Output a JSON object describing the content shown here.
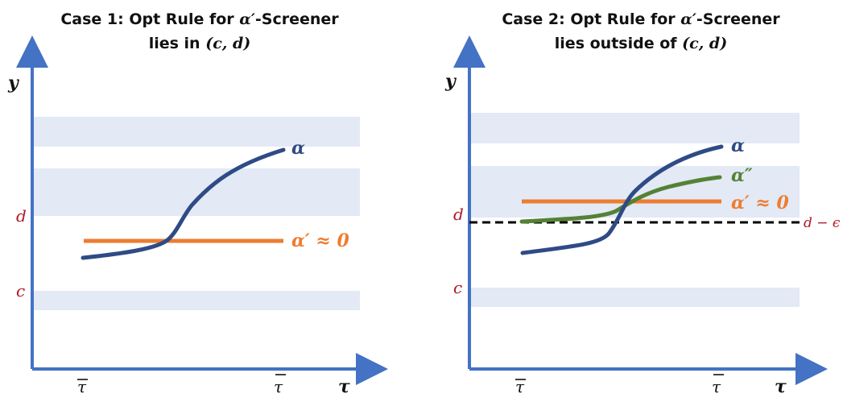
{
  "colors": {
    "axis": "#4472c4",
    "band": "#e3e9f5",
    "alpha_curve": "#2f4b86",
    "alpha_prime": "#ed7d31",
    "alpha_double_prime": "#548235",
    "threshold_label": "#b0182a",
    "dashed_line": "#000000"
  },
  "panels": [
    {
      "title_line1_prefix": "Case 1: Opt Rule for ",
      "title_line1_math": "α′",
      "title_line1_suffix": "-Screener",
      "title_line2_prefix": "lies in ",
      "title_line2_math": "(c, d)",
      "y_axis_label": "y",
      "x_axis_label": "τ",
      "x_tick_low": "τ",
      "x_tick_high": "τ",
      "label_d": "d",
      "label_c": "c",
      "label_alpha": "α",
      "label_alpha_prime": "α′ ≈ 0"
    },
    {
      "title_line1_prefix": "Case 2: Opt Rule for ",
      "title_line1_math": "α′",
      "title_line1_suffix": "-Screener",
      "title_line2_prefix": "lies outside of ",
      "title_line2_math": "(c, d)",
      "y_axis_label": "y",
      "x_axis_label": "τ",
      "x_tick_low": "τ",
      "x_tick_high": "τ",
      "label_d": "d",
      "label_c": "c",
      "label_alpha": "α",
      "label_alpha_double_prime": "α″",
      "label_alpha_prime": "α′ ≈ 0",
      "label_d_minus_epsilon": "d − ϵ"
    }
  ]
}
